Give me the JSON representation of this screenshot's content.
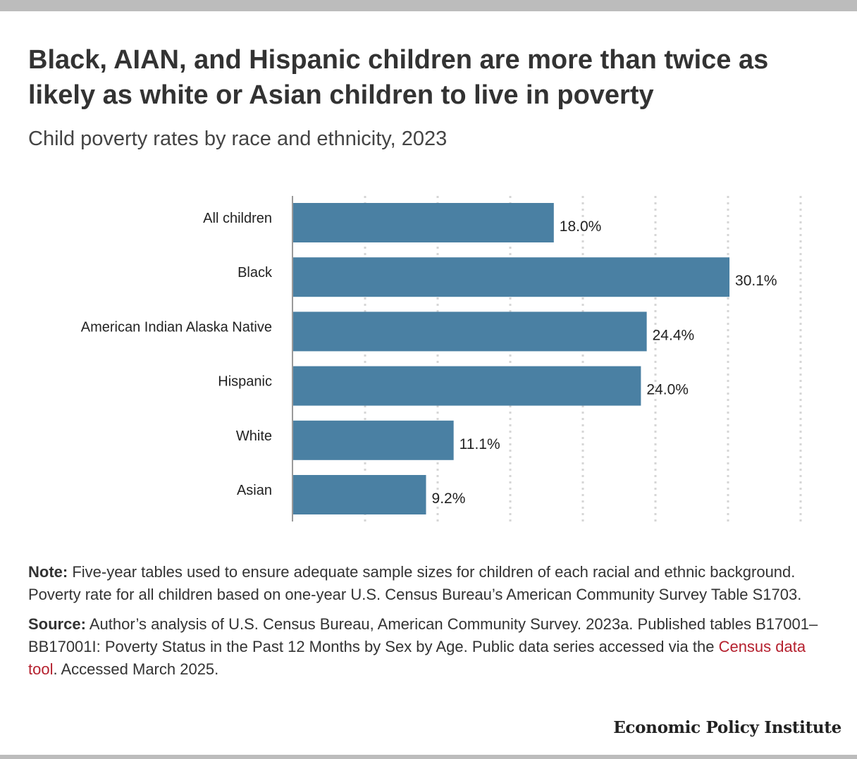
{
  "header": {
    "title": "Black, AIAN, and Hispanic children are more than twice as likely as white or Asian children to live in poverty",
    "subtitle": "Child poverty rates by race and ethnicity, 2023"
  },
  "chart_data": {
    "type": "bar",
    "orientation": "horizontal",
    "categories": [
      "All children",
      "Black",
      "American Indian Alaska Native",
      "Hispanic",
      "White",
      "Asian"
    ],
    "values": [
      18.0,
      30.1,
      24.4,
      24.0,
      11.1,
      9.2
    ],
    "value_labels": [
      "18.0%",
      "30.1%",
      "24.4%",
      "24.0%",
      "11.1%",
      "9.2%"
    ],
    "xlim": [
      0,
      35
    ],
    "grid": true,
    "bar_color": "#4a80a3"
  },
  "notes": {
    "note_label": "Note:",
    "note_text": "Five-year tables used to ensure adequate sample sizes for children of each racial and ethnic background. Poverty rate for all children based on one-year U.S. Census Bureau’s American Community Survey Table S1703.",
    "source_label": "Source:",
    "source_text_1": "Author’s analysis of U.S. Census Bureau, American Community Survey. 2023a. Published tables B17001–BB17001I: Poverty Status in the Past 12 Months by Sex by Age. Public data series accessed via the",
    "source_link": "Census data tool",
    "source_text_2": ". Accessed March 2025."
  },
  "footer": {
    "brand": "Economic Policy Institute"
  }
}
